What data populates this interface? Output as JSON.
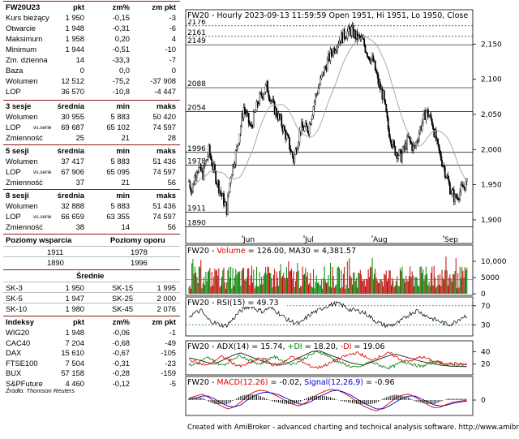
{
  "left_panel": {
    "main": {
      "headers": [
        "FW20U23",
        "pkt",
        "zm%",
        "zm pkt"
      ],
      "rows": [
        [
          "Kurs bieżący",
          "1 950",
          "-0,15",
          "-3"
        ],
        [
          "Otwarcie",
          "1 948",
          "-0,31",
          "-6"
        ],
        [
          "Maksimum",
          "1 958",
          "0,20",
          "4"
        ],
        [
          "Minimum",
          "1 944",
          "-0,51",
          "-10"
        ],
        [
          "Zm. dzienna",
          "14",
          "-33,3",
          "-7"
        ],
        [
          "Baza",
          "0",
          "0,0",
          "0"
        ],
        [
          "Wolumen",
          "12 512",
          "-75,2",
          "-37 908"
        ],
        [
          "LOP",
          "36 570",
          "-10,8",
          "-4 447"
        ]
      ]
    },
    "s3": {
      "headers": [
        "3 sesje",
        "średnia",
        "min",
        "maks"
      ],
      "rows": [
        [
          "Wolumen",
          "",
          "30 955",
          "5 883",
          "50 420"
        ],
        [
          "LOP",
          "vs.serie",
          "69 687",
          "65 102",
          "74 597"
        ],
        [
          "Zmienność",
          "",
          "25",
          "21",
          "28"
        ]
      ]
    },
    "s5": {
      "headers": [
        "5 sesji",
        "średnia",
        "min",
        "maks"
      ],
      "rows": [
        [
          "Wolumen",
          "",
          "37 417",
          "5 883",
          "51 436"
        ],
        [
          "LOP",
          "vs.serie",
          "67 906",
          "65 095",
          "74 597"
        ],
        [
          "Zmienność",
          "",
          "37",
          "21",
          "56"
        ]
      ]
    },
    "s8": {
      "headers": [
        "8 sesji",
        "średnia",
        "min",
        "maks"
      ],
      "rows": [
        [
          "Wolumen",
          "",
          "32 888",
          "5 883",
          "51 436"
        ],
        [
          "LOP",
          "vs.serie",
          "66 659",
          "63 355",
          "74 597"
        ],
        [
          "Zmienność",
          "",
          "38",
          "14",
          "56"
        ]
      ]
    },
    "levels": {
      "headers": [
        "Poziomy wsparcia",
        "Poziomy oporu"
      ],
      "rows": [
        [
          "1911",
          "1978"
        ],
        [
          "1890",
          "1996"
        ]
      ]
    },
    "averages": {
      "header": "Średnie",
      "rows": [
        [
          "SK-3",
          "1 950",
          "SK-15",
          "1 995"
        ],
        [
          "SK-5",
          "1 947",
          "SK-25",
          "2 000"
        ],
        [
          "SK-10",
          "1 980",
          "SK-45",
          "2 076"
        ]
      ]
    },
    "indices": {
      "headers": [
        "Indeksy",
        "pkt",
        "zm%",
        "zm pkt"
      ],
      "rows": [
        [
          "WIG20",
          "1 948",
          "-0,06",
          "-1"
        ],
        [
          "CAC40",
          "7 204",
          "-0,68",
          "-49"
        ],
        [
          "DAX",
          "15 610",
          "-0,67",
          "-105"
        ],
        [
          "FTSE100",
          "7 504",
          "-0,31",
          "-23"
        ],
        [
          "BUX",
          "57 158",
          "-0,28",
          "-159"
        ],
        [
          "S&PFuture",
          "4 460",
          "-0,12",
          "-5"
        ]
      ]
    },
    "source": "Źródło: Thomson Reuters"
  },
  "chart_data": [
    {
      "type": "candlestick",
      "title": "FW20 - Hourly 2023-09-13 11:59:59 Open 1951, Hi 1951, Lo 1950, Close",
      "x_labels": [
        "Jun",
        "Jul",
        "Aug",
        "Sep"
      ],
      "y_ticks": [
        1900,
        1950,
        2000,
        2050,
        2100,
        2150
      ],
      "y_tick_labels": [
        "1,900",
        "1,950",
        "2,000",
        "2,050",
        "2,100",
        "2,150"
      ],
      "ylim": [
        1878,
        2185
      ],
      "levels": [
        2176,
        2161,
        2149,
        2088,
        2054,
        1996,
        1978,
        1911,
        1890
      ],
      "level_labels": [
        "2176",
        "2161",
        "2149",
        "2088",
        "2054",
        "1996",
        "1978",
        "1911",
        "1890"
      ],
      "price_path": [
        [
          0,
          1955
        ],
        [
          3,
          1942
        ],
        [
          8,
          1975
        ],
        [
          14,
          1965
        ],
        [
          20,
          1998
        ],
        [
          26,
          1965
        ],
        [
          32,
          1938
        ],
        [
          38,
          1915
        ],
        [
          42,
          1965
        ],
        [
          48,
          2000
        ],
        [
          55,
          2060
        ],
        [
          62,
          2030
        ],
        [
          70,
          2070
        ],
        [
          78,
          2090
        ],
        [
          85,
          2060
        ],
        [
          92,
          2040
        ],
        [
          100,
          2010
        ],
        [
          105,
          1985
        ],
        [
          112,
          2030
        ],
        [
          120,
          2030
        ],
        [
          127,
          2075
        ],
        [
          135,
          2110
        ],
        [
          142,
          2135
        ],
        [
          150,
          2155
        ],
        [
          157,
          2165
        ],
        [
          163,
          2170
        ],
        [
          168,
          2160
        ],
        [
          174,
          2155
        ],
        [
          180,
          2135
        ],
        [
          185,
          2125
        ],
        [
          190,
          2095
        ],
        [
          195,
          2075
        ],
        [
          200,
          2030
        ],
        [
          206,
          2000
        ],
        [
          213,
          1990
        ],
        [
          220,
          2015
        ],
        [
          226,
          2000
        ],
        [
          232,
          2030
        ],
        [
          238,
          2055
        ],
        [
          244,
          2040
        ],
        [
          250,
          2000
        ],
        [
          256,
          1975
        ],
        [
          262,
          1945
        ],
        [
          267,
          1930
        ],
        [
          272,
          1940
        ],
        [
          277,
          1950
        ],
        [
          280,
          1950
        ]
      ],
      "ma_label": "MA30"
    },
    {
      "type": "bar",
      "title_parts": [
        "FW20 - ",
        "Volume",
        " = 126.00, ",
        "MA30",
        " = 4,381.57"
      ],
      "y_tick_labels": [
        "10,000",
        "5000",
        "0"
      ],
      "y_ticks": [
        10000,
        5000,
        0
      ],
      "ylim": [
        0,
        12000
      ],
      "avg_volume": 4381.57
    },
    {
      "type": "line",
      "title_parts": [
        "FW20 - ",
        "RSI(15)",
        " = 49.73"
      ],
      "y_tick_labels": [
        "70",
        "30"
      ],
      "y_ticks": [
        70,
        30
      ],
      "ylim": [
        10,
        85
      ],
      "bands": [
        70,
        30
      ],
      "values": [
        48,
        55,
        60,
        42,
        35,
        30,
        28,
        40,
        55,
        65,
        70,
        62,
        58,
        66,
        60,
        50,
        40,
        35,
        32,
        45,
        55,
        60,
        68,
        72,
        75,
        70,
        62,
        60,
        58,
        50,
        40,
        32,
        28,
        30,
        35,
        45,
        55,
        60,
        52,
        45,
        40,
        35,
        30,
        35,
        45,
        50
      ]
    },
    {
      "type": "line",
      "title_parts": [
        "FW20 - ",
        "ADX(14)",
        " = 15.74, ",
        "+DI",
        " = 18.20, ",
        "-DI",
        " = 19.06"
      ],
      "y_tick_labels": [
        "40",
        "20"
      ],
      "y_ticks": [
        40,
        20
      ],
      "ylim": [
        5,
        55
      ],
      "series": [
        {
          "name": "ADX(14)",
          "color": "#000000",
          "values": [
            30,
            28,
            25,
            22,
            20,
            25,
            30,
            35,
            38,
            34,
            30,
            26,
            22,
            20,
            18,
            20,
            25,
            30,
            35,
            40,
            42,
            38,
            34,
            30,
            26,
            22,
            20,
            18,
            22,
            26,
            30,
            34,
            36,
            33,
            30,
            27,
            24,
            22,
            20,
            18,
            17,
            16,
            16,
            15.74
          ]
        },
        {
          "name": "+DI",
          "color": "#008000",
          "values": [
            18,
            20,
            26,
            30,
            24,
            18,
            22,
            30,
            34,
            28,
            24,
            20,
            26,
            32,
            28,
            22,
            20,
            24,
            30,
            36,
            40,
            36,
            30,
            24,
            20,
            16,
            14,
            18,
            24,
            20,
            16,
            14,
            18,
            24,
            22,
            18,
            16,
            20,
            24,
            22,
            20,
            18,
            19,
            18.2
          ]
        },
        {
          "name": "-DI",
          "color": "#e00000",
          "values": [
            26,
            24,
            20,
            18,
            26,
            32,
            28,
            20,
            16,
            20,
            24,
            30,
            26,
            18,
            20,
            26,
            32,
            28,
            20,
            16,
            14,
            18,
            22,
            28,
            32,
            36,
            38,
            34,
            26,
            30,
            34,
            38,
            32,
            26,
            24,
            28,
            32,
            28,
            24,
            22,
            20,
            21,
            20,
            19.06
          ]
        }
      ]
    },
    {
      "type": "line",
      "title_parts": [
        "FW20 - ",
        "MACD(12,26)",
        " = -0.02, ",
        "Signal(12,26,9)",
        " = -0.96"
      ],
      "y_tick_labels": [
        "0"
      ],
      "y_ticks": [
        0
      ],
      "ylim": [
        -14,
        14
      ],
      "series": [
        {
          "name": "MACD(12,26)",
          "color": "#e00000",
          "values": [
            2,
            4,
            6,
            3,
            -2,
            -6,
            -9,
            -7,
            -2,
            4,
            8,
            10,
            9,
            6,
            3,
            -1,
            -4,
            -6,
            -3,
            2,
            6,
            9,
            11,
            10,
            7,
            3,
            -2,
            -6,
            -9,
            -11,
            -8,
            -3,
            2,
            5,
            6,
            3,
            -1,
            -5,
            -8,
            -7,
            -4,
            -2,
            -1,
            -0.02
          ]
        },
        {
          "name": "Signal(12,26,9)",
          "color": "#0000d0",
          "values": [
            1,
            2,
            4,
            4,
            1,
            -3,
            -6,
            -7,
            -5,
            0,
            4,
            7,
            8,
            7,
            5,
            2,
            -1,
            -4,
            -4,
            -1,
            3,
            6,
            9,
            10,
            8,
            5,
            1,
            -3,
            -6,
            -9,
            -9,
            -6,
            -2,
            2,
            4,
            4,
            1,
            -2,
            -5,
            -6,
            -5,
            -3,
            -2,
            -0.96
          ]
        }
      ]
    }
  ],
  "footer": "Created with AmiBroker - advanced charting and technical analysis software. http://www.amibroker.c",
  "colors": {
    "rule": "#8b1a1a",
    "candle": "#000000",
    "ma": "#a0a0a0",
    "vol_up": "#008000",
    "vol_down": "#c00000",
    "band": "#cc0000",
    "accent_red": "#e00000",
    "accent_green": "#008000",
    "accent_blue": "#0000d0"
  }
}
